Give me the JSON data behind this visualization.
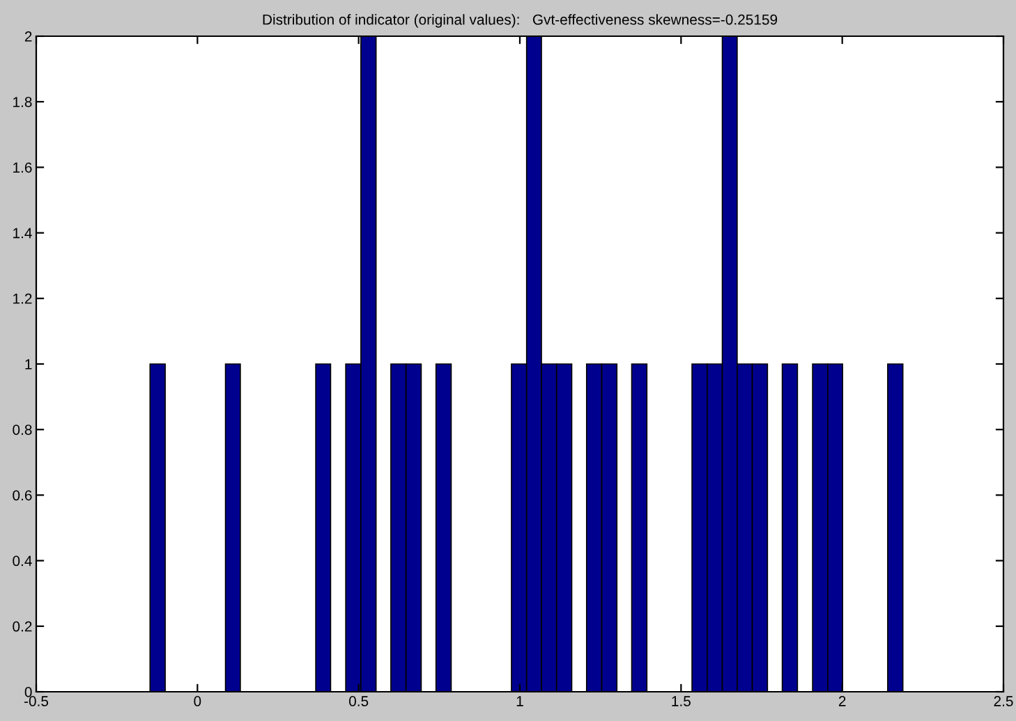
{
  "chart_data": {
    "type": "histogram",
    "title": "Distribution of indicator (original values):   Gvt-effectiveness skewness=-0.25159",
    "bins": [
      -0.147,
      -0.1,
      -0.054,
      -0.007,
      0.04,
      0.087,
      0.133,
      0.18,
      0.227,
      0.273,
      0.32,
      0.367,
      0.413,
      0.46,
      0.507,
      0.554,
      0.6,
      0.647,
      0.694,
      0.74,
      0.787,
      0.834,
      0.88,
      0.927,
      0.974,
      1.021,
      1.067,
      1.114,
      1.161,
      1.207,
      1.254,
      1.301,
      1.347,
      1.394,
      1.441,
      1.488,
      1.534,
      1.581,
      1.628,
      1.674,
      1.721,
      1.768,
      1.814,
      1.861,
      1.908,
      1.955,
      2.001,
      2.048,
      2.095,
      2.141,
      2.188
    ],
    "values": [
      1,
      0,
      0,
      0,
      0,
      1,
      0,
      0,
      0,
      0,
      0,
      1,
      0,
      1,
      2,
      0,
      1,
      1,
      0,
      1,
      0,
      0,
      0,
      0,
      1,
      2,
      1,
      1,
      0,
      1,
      1,
      0,
      1,
      0,
      0,
      0,
      1,
      1,
      2,
      1,
      1,
      0,
      1,
      0,
      1,
      1,
      0,
      0,
      0,
      1
    ],
    "color": "#00008f",
    "xlim": [
      -0.5,
      2.5
    ],
    "xticks": [
      -0.5,
      0,
      0.5,
      1,
      1.5,
      2,
      2.5
    ],
    "ylim": [
      0,
      2
    ],
    "yticks": [
      0,
      0.2,
      0.4,
      0.6,
      0.8,
      1,
      1.2,
      1.4,
      1.6,
      1.8,
      2
    ],
    "grid": false
  }
}
